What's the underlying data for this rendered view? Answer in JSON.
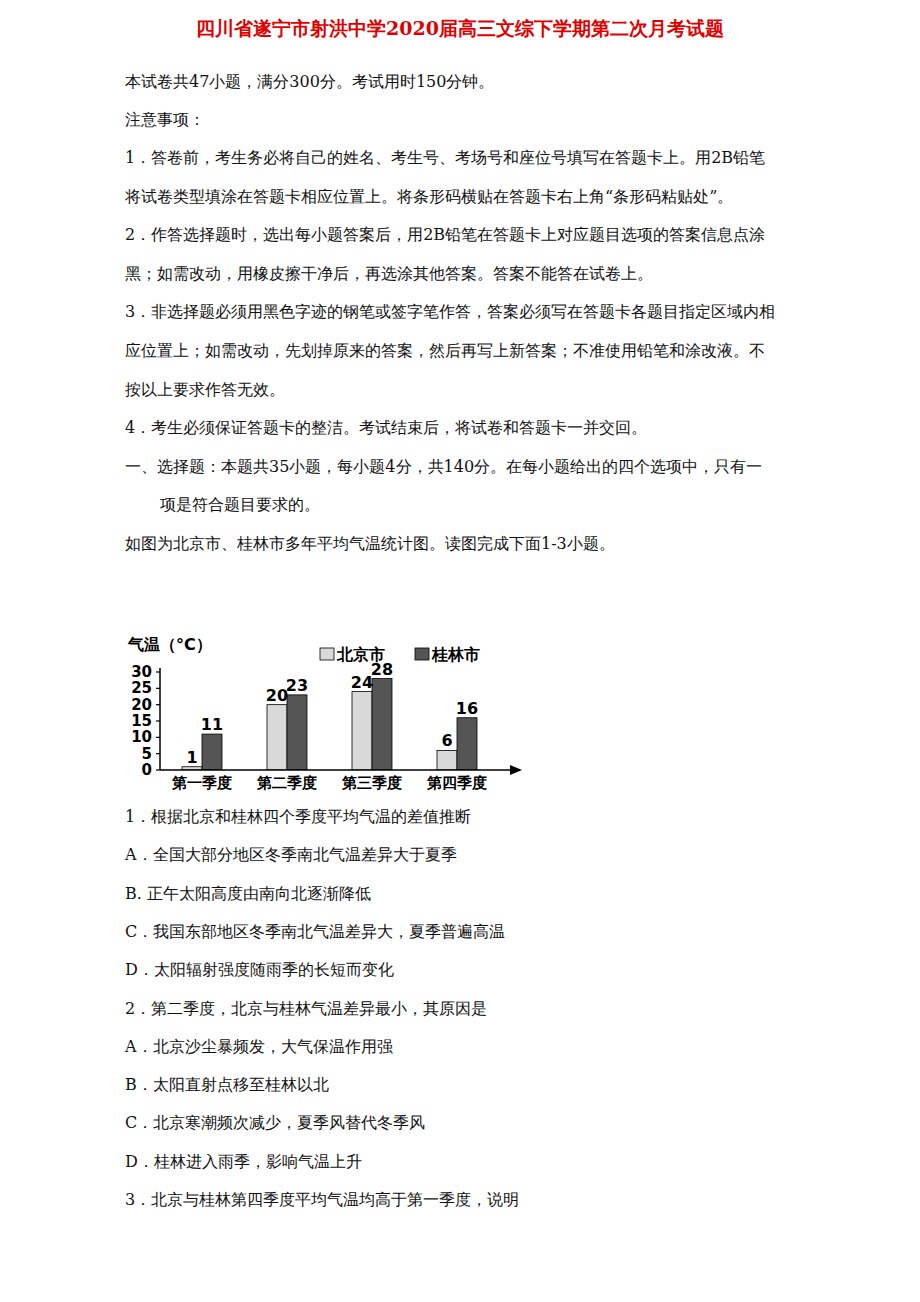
{
  "title": "四川省遂宁市射洪中学2020届高三文综下学期第二次月考试题",
  "intro": "本试卷共47小题，满分300分。考试用时150分钟。",
  "notes_heading": "注意事项：",
  "notes": [
    [
      "1．答卷前，考生务必将自己的姓名、考生号、考场号和座位号填写在答题卡上。用2B铅笔",
      "将试卷类型填涂在答题卡相应位置上。将条形码横贴在答题卡右上角“条形码粘贴处”。"
    ],
    [
      "2．作答选择题时，选出每小题答案后，用2B铅笔在答题卡上对应题目选项的答案信息点涂",
      "黑；如需改动，用橡皮擦干净后，再选涂其他答案。答案不能答在试卷上。"
    ],
    [
      "3．非选择题必须用黑色字迹的钢笔或签字笔作答，答案必须写在答题卡各题目指定区域内相",
      "应位置上；如需改动，先划掉原来的答案，然后再写上新答案；不准使用铅笔和涂改液。不",
      "按以上要求作答无效。"
    ],
    [
      "4．考生必须保证答题卡的整洁。考试结束后，将试卷和答题卡一并交回。"
    ]
  ],
  "section": [
    "一、选择题：本题共35小题，每小题4分，共140分。在每小题给出的四个选项中，只有一",
    "项是符合题目要求的。"
  ],
  "question_intro": "如图为北京市、桂林市多年平均气温统计图。读图完成下面1-3小题。",
  "chart_data": {
    "type": "bar",
    "y_label": "气温（°C）",
    "categories": [
      "第一季度",
      "第二季度",
      "第三季度",
      "第四季度"
    ],
    "series": [
      {
        "name": "北京市",
        "color": "#d9d9d9",
        "values": [
          1,
          20,
          24,
          6
        ]
      },
      {
        "name": "桂林市",
        "color": "#555555",
        "values": [
          11,
          23,
          28,
          16
        ]
      }
    ],
    "ylim": [
      0,
      30
    ],
    "yticks": [
      0,
      5,
      10,
      15,
      20,
      25,
      30
    ],
    "grid": false,
    "legend": "top",
    "data_labels": true
  },
  "questions": [
    {
      "stem": "1．根据北京和桂林四个季度平均气温的差值推断",
      "options": [
        "A．全国大部分地区冬季南北气温差异大于夏季",
        "B. 正午太阳高度由南向北逐渐降低",
        "C．我国东部地区冬季南北气温差异大，夏季普遍高温",
        "D．太阳辐射强度随雨季的长短而变化"
      ]
    },
    {
      "stem": "2．第二季度，北京与桂林气温差异最小，其原因是",
      "options": [
        "A．北京沙尘暴频发，大气保温作用强",
        "B．太阳直射点移至桂林以北",
        "C．北京寒潮频次减少，夏季风替代冬季风",
        "D．桂林进入雨季，影响气温上升"
      ]
    },
    {
      "stem": "3．北京与桂林第四季度平均气温均高于第一季度，说明",
      "options": []
    }
  ]
}
